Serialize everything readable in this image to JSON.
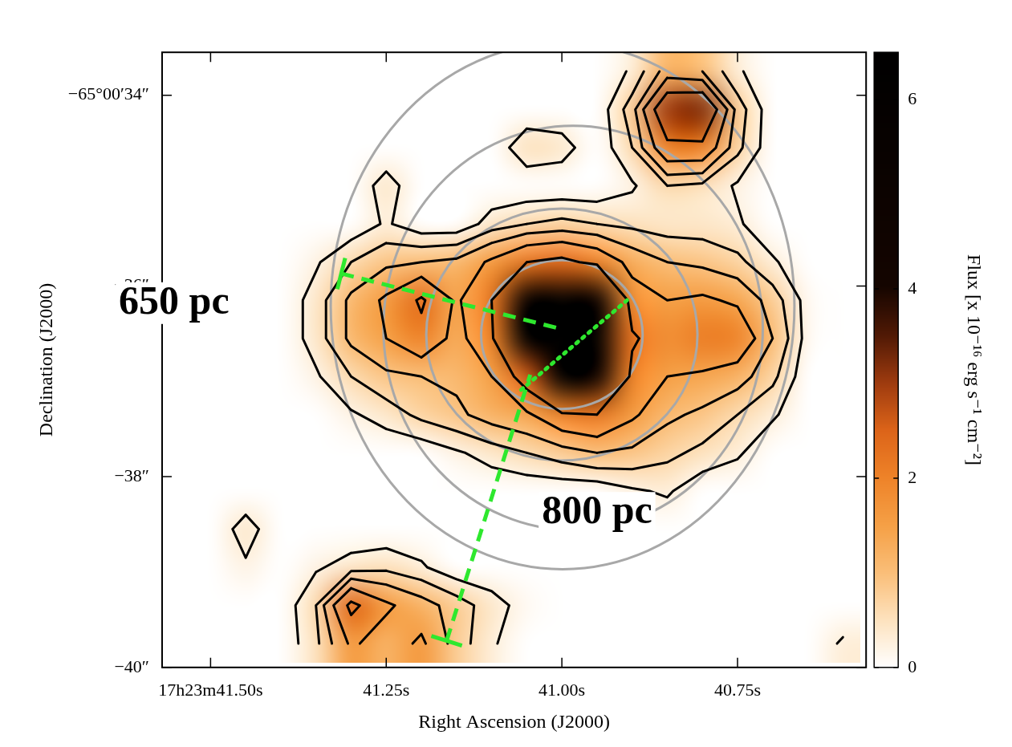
{
  "chart_data": {
    "type": "heatmap",
    "x_label": "Right Ascension (J2000)",
    "y_label": "Declination (J2000)",
    "xlim": [
      41.569,
      40.567
    ],
    "xticks": [
      {
        "value": 41.5,
        "label": "17h23m41.50s"
      },
      {
        "value": 41.25,
        "label": "41.25s"
      },
      {
        "value": 41.0,
        "label": "41.00s"
      },
      {
        "value": 40.75,
        "label": "40.75s"
      }
    ],
    "ylim": [
      -40,
      -33.55
    ],
    "yticks": [
      {
        "value": -34,
        "label": "−65°00′34″"
      },
      {
        "value": -36,
        "label": "−36″"
      },
      {
        "value": -38,
        "label": "−38″"
      },
      {
        "value": -40,
        "label": "−40″"
      }
    ],
    "grid": false,
    "x": [
      41.55,
      41.5,
      41.45,
      41.4,
      41.35,
      41.3,
      41.25,
      41.2,
      41.15,
      41.1,
      41.05,
      41.0,
      40.95,
      40.9,
      40.85,
      40.8,
      40.75,
      40.7,
      40.65,
      40.6
    ],
    "y": [
      -33.75,
      -34.15,
      -34.55,
      -34.95,
      -35.35,
      -35.75,
      -36.15,
      -36.55,
      -36.95,
      -37.35,
      -37.75,
      -38.15,
      -38.55,
      -38.95,
      -39.35,
      -39.75
    ],
    "values": [
      [
        0,
        0,
        0,
        0,
        0,
        0,
        0,
        0,
        0,
        0,
        0,
        0,
        0,
        0.3,
        1.2,
        1.0,
        0.3,
        0,
        0,
        0
      ],
      [
        0,
        0,
        0,
        0,
        0,
        0,
        0,
        0,
        0,
        0,
        0,
        0,
        0,
        0.8,
        3.0,
        3.2,
        0.8,
        0,
        0,
        0
      ],
      [
        0,
        0,
        0,
        0,
        0,
        0,
        0,
        0,
        0,
        0,
        0.5,
        0.4,
        0,
        0.6,
        2.0,
        2.0,
        0.7,
        0,
        0,
        0
      ],
      [
        0,
        0,
        0,
        0,
        0,
        0,
        0.4,
        0,
        0,
        0,
        0,
        0,
        0,
        0.2,
        0.6,
        0.5,
        0.2,
        0,
        0,
        0
      ],
      [
        0,
        0,
        0,
        0,
        0,
        0,
        0.3,
        0,
        0,
        0.4,
        0.6,
        0.7,
        0.6,
        0.5,
        0.4,
        0.4,
        0.3,
        0,
        0,
        0
      ],
      [
        0,
        0,
        0,
        0,
        0.2,
        0.6,
        0.9,
        1.0,
        1.1,
        1.6,
        2.2,
        2.4,
        2.0,
        1.3,
        1.0,
        0.9,
        0.7,
        0.3,
        0,
        0
      ],
      [
        0,
        0,
        0,
        0,
        0.4,
        1.1,
        1.6,
        2.3,
        1.4,
        2.2,
        5.5,
        6.5,
        5.0,
        1.8,
        1.5,
        1.6,
        1.4,
        0.8,
        0.1,
        0
      ],
      [
        0,
        0,
        0,
        0,
        0.4,
        1.1,
        1.5,
        2.0,
        1.3,
        2.0,
        6.5,
        6.5,
        6.2,
        2.3,
        1.8,
        2.1,
        2.0,
        1.0,
        0.1,
        0
      ],
      [
        0,
        0,
        0,
        0,
        0.2,
        0.6,
        0.9,
        1.0,
        1.1,
        1.5,
        2.6,
        6.5,
        4.5,
        2.0,
        1.5,
        1.4,
        1.2,
        0.7,
        0,
        0
      ],
      [
        0,
        0,
        0,
        0,
        0,
        0.2,
        0.4,
        0.7,
        0.9,
        1.2,
        1.4,
        2.0,
        2.2,
        1.6,
        1.1,
        0.9,
        0.6,
        0.3,
        0,
        0
      ],
      [
        0,
        0,
        0,
        0,
        0,
        0,
        0,
        0,
        0.2,
        0.4,
        0.6,
        0.8,
        1.0,
        0.9,
        0.7,
        0.5,
        0.3,
        0,
        0,
        0
      ],
      [
        0,
        0,
        0,
        0,
        0,
        0,
        0,
        0,
        0,
        0,
        0,
        0,
        0,
        0.2,
        0.3,
        0,
        0,
        0,
        0,
        0
      ],
      [
        0,
        0,
        0.4,
        0,
        0,
        0,
        0,
        0,
        0,
        0,
        0,
        0,
        0,
        0,
        0,
        0,
        0,
        0,
        0,
        0
      ],
      [
        0,
        0,
        0.2,
        0,
        0.2,
        0.4,
        0.5,
        0.3,
        0,
        0,
        0,
        0,
        0,
        0,
        0,
        0,
        0,
        0,
        0,
        0
      ],
      [
        0,
        0,
        0,
        0,
        0.6,
        2.4,
        1.6,
        1.2,
        0.8,
        0.4,
        0.1,
        0,
        0,
        0,
        0,
        0,
        0,
        0,
        0,
        0
      ],
      [
        0,
        0,
        0,
        0,
        0.5,
        1.6,
        1.2,
        1.6,
        0.8,
        0.3,
        0,
        0,
        0,
        0,
        0,
        0,
        0,
        0,
        0,
        0.3
      ]
    ],
    "colorbar": {
      "label": "Flux [x 10⁻¹⁶ erg s⁻¹ cm⁻²]",
      "range": [
        0,
        6.5
      ],
      "ticks": [
        0,
        2,
        4,
        6
      ]
    },
    "contour_levels": [
      0.25,
      0.6,
      1.0,
      1.5,
      2.2
    ],
    "ellipses": [
      {
        "x": 41.0,
        "y": -36.51,
        "rx": 0.115,
        "ry": 0.78
      },
      {
        "x": 41.0,
        "y": -36.51,
        "rx": 0.193,
        "ry": 1.32
      },
      {
        "x": 40.984,
        "y": -36.44,
        "rx": 0.27,
        "ry": 2.12
      },
      {
        "x": 40.999,
        "y": -36.21,
        "rx": 0.33,
        "ry": 2.76
      }
    ],
    "annotations": [
      {
        "text": "650 pc",
        "x": 41.552,
        "y": -36.18,
        "line": [
          [
            41.314,
            -35.87
          ],
          [
            41.007,
            -36.44
          ]
        ]
      },
      {
        "text": "800 pc",
        "x": 40.95,
        "y": -38.38,
        "line": [
          [
            41.164,
            -39.72
          ],
          [
            41.045,
            -36.93
          ]
        ]
      }
    ],
    "dotted_line": [
      [
        41.058,
        -37.09
      ],
      [
        40.904,
        -36.13
      ]
    ]
  }
}
